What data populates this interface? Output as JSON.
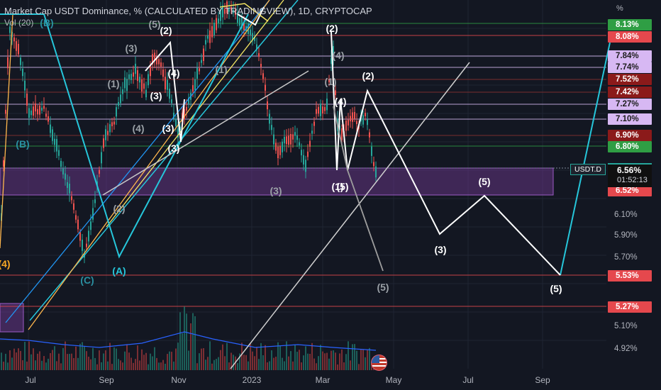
{
  "header": {
    "title": "Market Cap USDT Dominance, % (CALCULATED BY TRADINGVIEW), 1D, CRYPTOCAP",
    "volume": "Vol (20)"
  },
  "price_axis": {
    "unit": "%",
    "labels": [
      "6.10%",
      "5.90%",
      "5.70%",
      "5.10%",
      "4.92%"
    ],
    "tags": [
      {
        "text": "8.13%",
        "bg": "#2f9e44",
        "fg": "#ffffff"
      },
      {
        "text": "8.08%",
        "bg": "#e5484d",
        "fg": "#ffffff"
      },
      {
        "text": "7.84%",
        "bg": "#d7b8f3",
        "fg": "#1c1c1c"
      },
      {
        "text": "7.74%",
        "bg": "#d7b8f3",
        "fg": "#1c1c1c"
      },
      {
        "text": "7.52%",
        "bg": "#8b1a1a",
        "fg": "#ffffff"
      },
      {
        "text": "7.42%",
        "bg": "#8b1a1a",
        "fg": "#ffffff"
      },
      {
        "text": "7.27%",
        "bg": "#d7b8f3",
        "fg": "#1c1c1c"
      },
      {
        "text": "7.10%",
        "bg": "#d7b8f3",
        "fg": "#1c1c1c"
      },
      {
        "text": "6.90%",
        "bg": "#8b1a1a",
        "fg": "#ffffff"
      },
      {
        "text": "6.80%",
        "bg": "#2f9e44",
        "fg": "#ffffff"
      },
      {
        "text": "6.52%",
        "bg": "#e5484d",
        "fg": "#ffffff"
      },
      {
        "text": "5.53%",
        "bg": "#e5484d",
        "fg": "#ffffff"
      },
      {
        "text": "5.27%",
        "bg": "#e5484d",
        "fg": "#ffffff"
      }
    ],
    "symbol_tag": "USDT.D",
    "current_value": "6.56%",
    "countdown": "01:52:13"
  },
  "time_axis": [
    "Jul",
    "Sep",
    "Nov",
    "2023",
    "Mar",
    "May",
    "Jul",
    "Sep"
  ],
  "wave_labels": {
    "white": [
      "(2)",
      "(2)",
      "(2)",
      "(4)",
      "(3)",
      "(4)",
      "(3)",
      "(1)",
      "(3)",
      "(5)",
      "(3)",
      "(5)"
    ],
    "grey": [
      "(3)",
      "(1)",
      "(4)",
      "(1)",
      "(1)",
      "(4)",
      "(3)",
      "(2)",
      "(5)",
      "(5)"
    ],
    "teal": [
      "(B)",
      "(A)",
      "(B)",
      "(C)"
    ],
    "orange": [
      "(4)"
    ]
  },
  "colors": {
    "background": "#131722",
    "up": "#26a69a",
    "down": "#ef5350",
    "zone": "#7b3fa0",
    "trend_teal": "#26c6da",
    "trend_blue": "#2196f3",
    "trend_orange": "#ffb74d",
    "trend_yellow": "#f5e663",
    "projection": "#ffffff"
  }
}
